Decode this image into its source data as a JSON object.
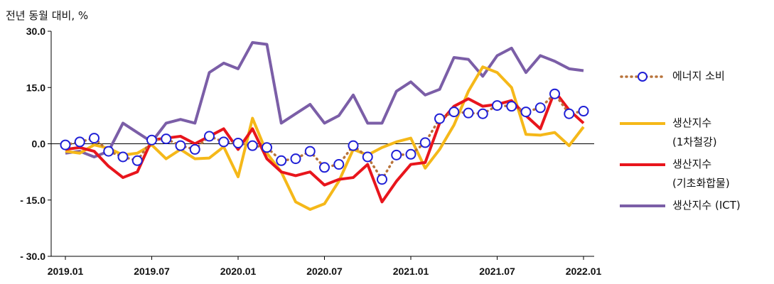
{
  "chart_data": {
    "type": "line",
    "ylabel": "전년 동월 대비, %",
    "ylim": [
      -30,
      30
    ],
    "yticks": [
      {
        "value": 30,
        "label": "30.0"
      },
      {
        "value": 15,
        "label": "15.0"
      },
      {
        "value": 0,
        "label": "0.0"
      },
      {
        "value": -15,
        "label": "- 15.0"
      },
      {
        "value": -30,
        "label": "- 30.0"
      }
    ],
    "xticks": [
      {
        "index": 0,
        "label": "2019.01"
      },
      {
        "index": 6,
        "label": "2019.07"
      },
      {
        "index": 12,
        "label": "2020.01"
      },
      {
        "index": 18,
        "label": "2020.07"
      },
      {
        "index": 24,
        "label": "2021.01"
      },
      {
        "index": 30,
        "label": "2021.07"
      },
      {
        "index": 36,
        "label": "2022.01"
      }
    ],
    "x": [
      "2019.01",
      "2019.02",
      "2019.03",
      "2019.04",
      "2019.05",
      "2019.06",
      "2019.07",
      "2019.08",
      "2019.09",
      "2019.10",
      "2019.11",
      "2019.12",
      "2020.01",
      "2020.02",
      "2020.03",
      "2020.04",
      "2020.05",
      "2020.06",
      "2020.07",
      "2020.08",
      "2020.09",
      "2020.10",
      "2020.11",
      "2020.12",
      "2021.01",
      "2021.02",
      "2021.03",
      "2021.04",
      "2021.05",
      "2021.06",
      "2021.07",
      "2021.08",
      "2021.09",
      "2021.10",
      "2021.11",
      "2021.12",
      "2022.01"
    ],
    "series": [
      {
        "name": "에너지 소비",
        "color": "#b8733a",
        "marker": "#1f1fd6",
        "values": [
          -0.3,
          0.5,
          1.5,
          -2.0,
          -3.5,
          -4.5,
          1.0,
          1.3,
          -0.5,
          -1.5,
          2.0,
          0.5,
          0.2,
          -0.5,
          -1.0,
          -4.5,
          -4.0,
          -2.0,
          -6.3,
          -5.5,
          -0.5,
          -3.5,
          -9.5,
          -3.0,
          -2.8,
          0.3,
          6.7,
          8.5,
          8.2,
          8.0,
          10.2,
          10.0,
          8.5,
          9.6,
          13.3,
          8.0,
          8.7
        ]
      },
      {
        "name": "생산지수 (1차철강)",
        "color": "#f5b819",
        "values": [
          -2.0,
          -2.5,
          -0.3,
          -1.2,
          -3.0,
          -2.5,
          -0.3,
          -4.0,
          -1.5,
          -4.0,
          -3.8,
          -0.8,
          -8.8,
          6.8,
          -2.5,
          -7.5,
          -15.5,
          -17.5,
          -16.0,
          -10.0,
          -1.5,
          -3.0,
          -1.0,
          0.5,
          1.5,
          -6.5,
          -1.5,
          5.0,
          14.0,
          20.5,
          19.0,
          15.0,
          2.5,
          2.3,
          3.0,
          -0.5,
          4.5
        ]
      },
      {
        "name": "생산지수 (기초화합물)",
        "color": "#e8151c",
        "values": [
          -1.5,
          -1.0,
          -2.0,
          -6.0,
          -9.0,
          -7.5,
          1.0,
          1.5,
          2.0,
          0.0,
          2.0,
          4.0,
          -1.5,
          4.0,
          -4.0,
          -7.5,
          -8.5,
          -7.5,
          -11.0,
          -9.5,
          -9.0,
          -5.5,
          -15.5,
          -10.0,
          -5.5,
          -5.0,
          5.5,
          10.0,
          12.0,
          10.0,
          10.5,
          11.5,
          7.5,
          4.0,
          14.0,
          9.0,
          5.5
        ]
      },
      {
        "name": "생산지수 (ICT)",
        "color": "#7b5ea7",
        "values": [
          -2.5,
          -2.0,
          -3.5,
          -2.0,
          5.5,
          3.0,
          0.5,
          5.5,
          6.5,
          5.5,
          19.0,
          21.5,
          20.0,
          27.0,
          26.5,
          5.5,
          8.0,
          10.5,
          5.5,
          7.5,
          13.0,
          5.5,
          5.5,
          14.0,
          16.5,
          13.0,
          14.5,
          23.0,
          22.5,
          18.0,
          23.5,
          25.5,
          19.0,
          23.5,
          22.0,
          20.0,
          19.5
        ]
      }
    ]
  },
  "legend": [
    {
      "key": "energy",
      "line1": "에너지 소비",
      "line2": ""
    },
    {
      "key": "steel",
      "line1": "생산지수",
      "line2": "(1차철강)"
    },
    {
      "key": "chem",
      "line1": "생산지수",
      "line2": "(기초화합물)"
    },
    {
      "key": "ict",
      "line1": "생산지수 (ICT)",
      "line2": ""
    }
  ]
}
